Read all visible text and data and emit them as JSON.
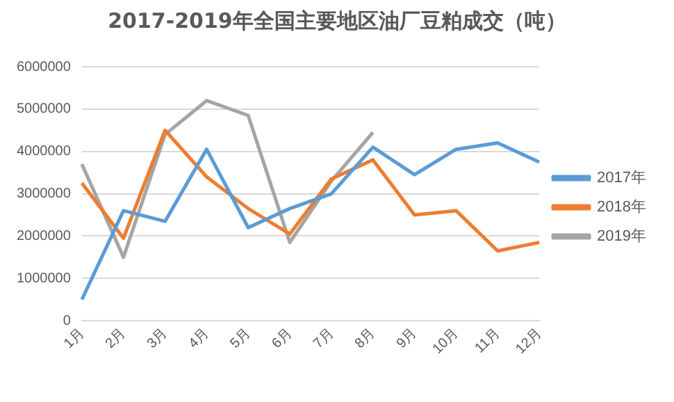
{
  "chart_data": {
    "type": "line",
    "title": "2017-2019年全国主要地区油厂豆粕成交（吨）",
    "categories": [
      "1月",
      "2月",
      "3月",
      "4月",
      "5月",
      "6月",
      "7月",
      "8月",
      "9月",
      "10月",
      "11月",
      "12月"
    ],
    "series": [
      {
        "name": "2017年",
        "color": "#5b9bd5",
        "values": [
          500000,
          2600000,
          2350000,
          4050000,
          2200000,
          2650000,
          3000000,
          4100000,
          3450000,
          4050000,
          4200000,
          3750000
        ]
      },
      {
        "name": "2018年",
        "color": "#ed7d31",
        "values": [
          3250000,
          1950000,
          4500000,
          3400000,
          2650000,
          2050000,
          3350000,
          3800000,
          2500000,
          2600000,
          1650000,
          1850000
        ]
      },
      {
        "name": "2019年",
        "color": "#a5a5a5",
        "values": [
          3700000,
          1500000,
          4400000,
          5200000,
          4850000,
          1850000,
          3300000,
          4450000,
          null,
          null,
          null,
          null
        ]
      }
    ],
    "ylim": [
      0,
      6000000
    ],
    "yticks": [
      0,
      1000000,
      2000000,
      3000000,
      4000000,
      5000000,
      6000000
    ],
    "grid": "y",
    "legend": "right",
    "marker": "none",
    "line_style": "solid"
  }
}
